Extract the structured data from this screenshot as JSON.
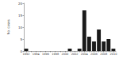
{
  "chart_data": {
    "type": "bar",
    "y_label": "No. cases",
    "categories": [
      "1992",
      null,
      "1994",
      null,
      "1996",
      null,
      "1998",
      null,
      "2000",
      null,
      "2002",
      null,
      "2004",
      null,
      "2006",
      null,
      "2008",
      null,
      "2010"
    ],
    "values": [
      1,
      0,
      0,
      0,
      0,
      0,
      0,
      0,
      0,
      1,
      0,
      1,
      17,
      6,
      4,
      9,
      4,
      5,
      1
    ],
    "color": "#1a1a1a",
    "ylim": [
      0,
      20
    ],
    "yticks": [
      0,
      5,
      10,
      15,
      20
    ],
    "grid": false
  }
}
